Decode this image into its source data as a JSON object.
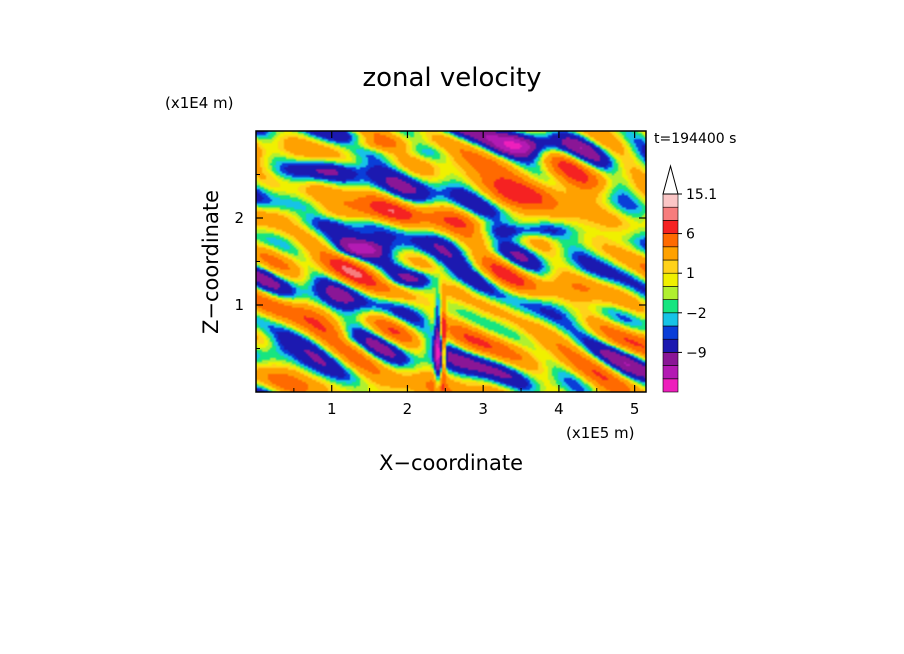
{
  "chart_data": {
    "type": "heatmap",
    "title": "zonal velocity",
    "xlabel": "X−coordinate",
    "ylabel": "Z−coordinate",
    "x_unit": "(x1E5 m)",
    "y_unit": "(x1E4 m)",
    "time_label": "t=194400 s",
    "xlim": [
      0,
      5.15
    ],
    "ylim": [
      0,
      3.0
    ],
    "x_ticks": [
      1,
      2,
      3,
      4,
      5
    ],
    "y_ticks": [
      1,
      2
    ],
    "colorbar": {
      "levels": [
        -15,
        -12,
        -9,
        -6,
        -3,
        -2,
        -1,
        0,
        1,
        2,
        3,
        6,
        9,
        12,
        15.1
      ],
      "colors": [
        "#ee1fbc",
        "#b31ab3",
        "#8a1696",
        "#1c19b0",
        "#0a3ed8",
        "#16c3e6",
        "#17e580",
        "#b0f030",
        "#f0f000",
        "#ffd21a",
        "#ffa100",
        "#ff6a00",
        "#f52222",
        "#f77d7d",
        "#fbc6c6"
      ],
      "labels": [
        {
          "text": "15.1",
          "value": 15.1
        },
        {
          "text": "6",
          "value": 6
        },
        {
          "text": "1",
          "value": 1
        },
        {
          "text": "−2",
          "value": -2
        },
        {
          "text": "−9",
          "value": -9
        }
      ],
      "extend": "max"
    },
    "features": [
      {
        "x": 0.9,
        "z": 2.55,
        "u": -6,
        "rx": 0.55,
        "rz": 0.12
      },
      {
        "x": 2.15,
        "z": 2.75,
        "u": -3,
        "rx": 0.5,
        "rz": 0.1
      },
      {
        "x": 3.55,
        "z": 2.83,
        "u": -8,
        "rx": 0.45,
        "rz": 0.14
      },
      {
        "x": 3.7,
        "z": 2.28,
        "u": 8,
        "rx": 0.85,
        "rz": 0.22
      },
      {
        "x": 3.5,
        "z": 1.85,
        "u": -6,
        "rx": 0.6,
        "rz": 0.09
      },
      {
        "x": 1.4,
        "z": 1.65,
        "u": -7,
        "rx": 0.4,
        "rz": 0.1
      },
      {
        "x": 2.1,
        "z": 1.3,
        "u": -8,
        "rx": 0.45,
        "rz": 0.12
      },
      {
        "x": 1.0,
        "z": 2.05,
        "u": 3,
        "rx": 1.0,
        "rz": 0.1
      },
      {
        "x": 1.5,
        "z": 2.85,
        "u": 4,
        "rx": 0.4,
        "rz": 0.08
      },
      {
        "x": 2.4,
        "z": 0.5,
        "u": -10,
        "rx": 0.04,
        "rz": 0.5
      },
      {
        "x": 2.48,
        "z": 0.55,
        "u": 10,
        "rx": 0.03,
        "rz": 0.45
      },
      {
        "x": 1.8,
        "z": 1.15,
        "u": 2,
        "rx": 0.5,
        "rz": 0.2
      },
      {
        "x": 4.3,
        "z": 0.7,
        "u": 1.2,
        "rx": 0.8,
        "rz": 0.5
      },
      {
        "x": 0.3,
        "z": 0.5,
        "u": -2,
        "rx": 0.2,
        "rz": 0.15
      },
      {
        "x": 1.2,
        "z": 0.6,
        "u": -2,
        "rx": 0.15,
        "rz": 0.1
      },
      {
        "x": 4.9,
        "z": 2.4,
        "u": -3,
        "rx": 0.25,
        "rz": 0.15
      },
      {
        "x": 3.2,
        "z": 1.05,
        "u": 3,
        "rx": 0.35,
        "rz": 0.25
      },
      {
        "x": 0.6,
        "z": 1.1,
        "u": 2,
        "rx": 0.4,
        "rz": 0.25
      }
    ]
  }
}
